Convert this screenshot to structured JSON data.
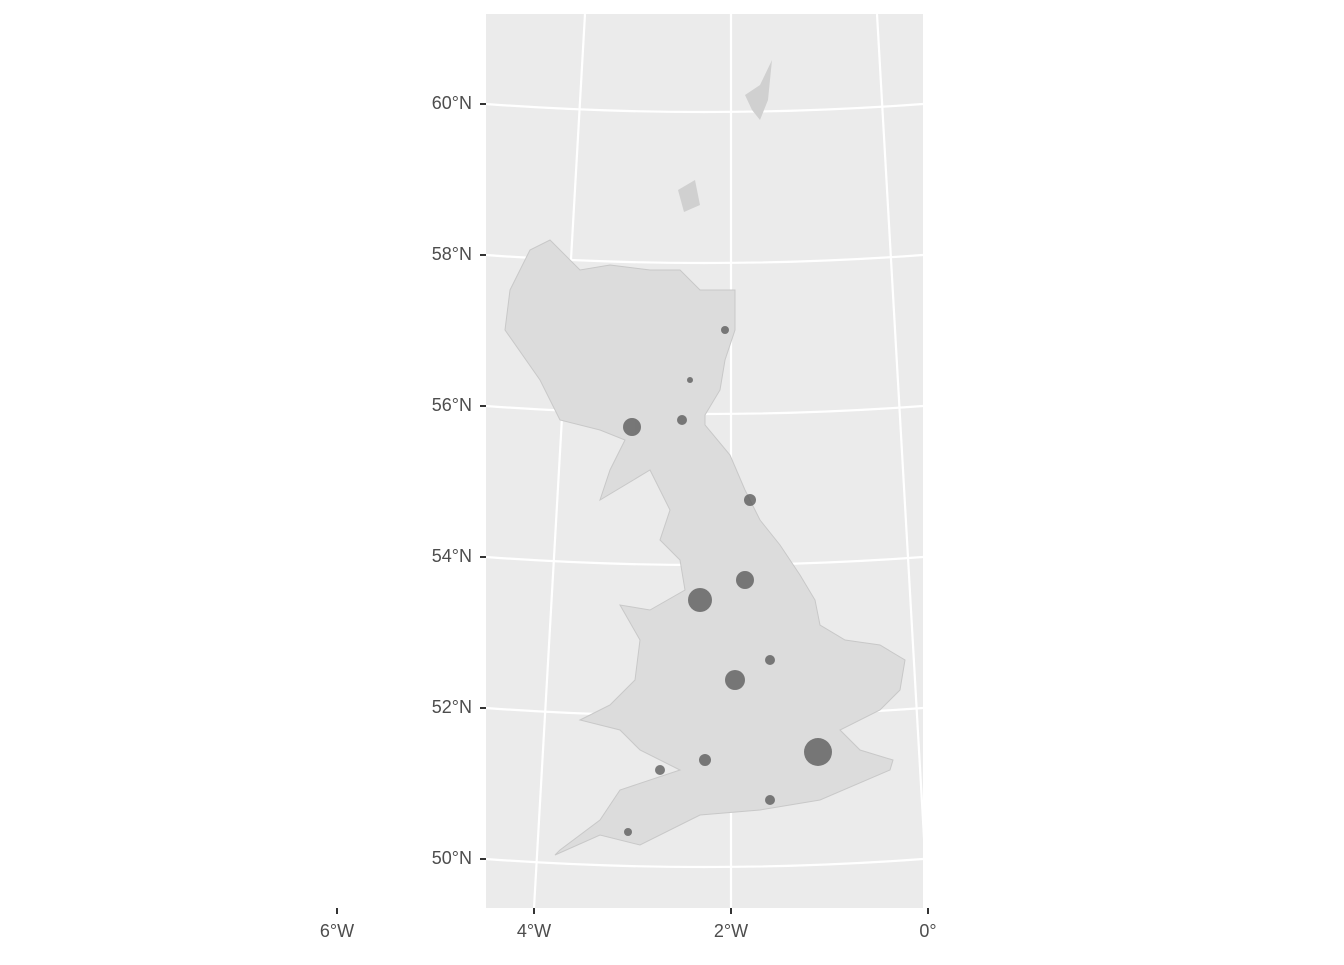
{
  "axes": {
    "y_ticks": [
      {
        "value": 60,
        "label": "60°N"
      },
      {
        "value": 58,
        "label": "58°N"
      },
      {
        "value": 56,
        "label": "56°N"
      },
      {
        "value": 54,
        "label": "54°N"
      },
      {
        "value": 52,
        "label": "52°N"
      },
      {
        "value": 50,
        "label": "50°N"
      }
    ],
    "x_ticks": [
      {
        "value": -6,
        "label": "6°W"
      },
      {
        "value": -4,
        "label": "4°W"
      },
      {
        "value": -2,
        "label": "2°W"
      },
      {
        "value": 0,
        "label": "0°"
      }
    ]
  }
}
